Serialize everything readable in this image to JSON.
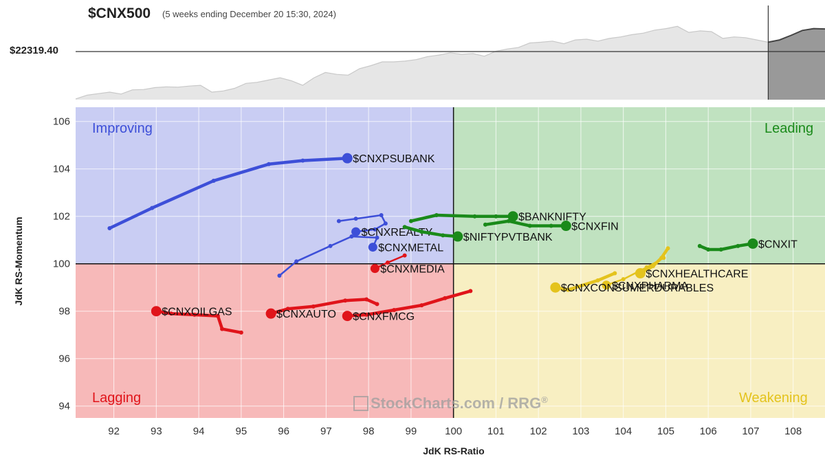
{
  "header": {
    "symbol": "$CNX500",
    "subtitle": "(5 weeks ending December 20 15:30, 2024)",
    "price_label": "$22319.40"
  },
  "axes": {
    "ylabel": "JdK RS-Momentum",
    "xlabel": "JdK RS-Ratio"
  },
  "quadrants": {
    "improving": "Improving",
    "leading": "Leading",
    "lagging": "Lagging",
    "weakening": "Weakening"
  },
  "watermark": {
    "main": "StockCharts.com",
    "sep": " / ",
    "rrg": "RRG",
    "mark": "®"
  },
  "colors": {
    "improving_bg": "#c9cdf3",
    "leading_bg": "#c0e2c0",
    "lagging_bg": "#f7b9b9",
    "weakening_bg": "#f8efc2",
    "blue": "#3d4fd8",
    "green": "#1a8a1a",
    "red": "#e0141a",
    "yellow": "#e4c31d"
  },
  "chart_data": [
    {
      "type": "area",
      "title": "$CNX500",
      "reference_value": "$22319.40",
      "values": [
        0.02,
        0.12,
        0.16,
        0.2,
        0.15,
        0.26,
        0.27,
        0.32,
        0.34,
        0.33,
        0.36,
        0.38,
        0.2,
        0.23,
        0.3,
        0.43,
        0.46,
        0.52,
        0.58,
        0.5,
        0.38,
        0.58,
        0.72,
        0.67,
        0.65,
        0.82,
        0.9,
        1.0,
        1.0,
        1.02,
        1.06,
        1.14,
        1.18,
        1.24,
        1.2,
        1.22,
        1.15,
        1.28,
        1.34,
        1.38,
        1.5,
        1.52,
        1.55,
        1.48,
        1.58,
        1.6,
        1.55,
        1.62,
        1.66,
        1.72,
        1.76,
        1.84,
        1.88,
        1.94,
        1.78,
        1.82,
        1.8,
        1.62,
        1.66,
        1.64,
        1.58,
        1.52,
        1.58,
        1.7,
        1.83,
        1.88,
        1.87
      ],
      "shaded_from_index": 61
    },
    {
      "type": "scatter",
      "subtype": "relative rotation graph",
      "xlabel": "JdK RS-Ratio",
      "ylabel": "JdK RS-Momentum",
      "xlim": [
        91.1,
        108.75
      ],
      "ylim": [
        93.5,
        106.6
      ],
      "xticks": [
        92,
        93,
        94,
        95,
        96,
        97,
        98,
        99,
        100,
        101,
        102,
        103,
        104,
        105,
        106,
        107,
        108
      ],
      "yticks": [
        94,
        96,
        98,
        100,
        102,
        104,
        106
      ],
      "center": [
        100,
        100
      ],
      "series": [
        {
          "name": "$CNXPSUBANK",
          "color": "blue",
          "head": "big",
          "points": [
            [
              91.9,
              101.5
            ],
            [
              92.9,
              102.35
            ],
            [
              94.35,
              103.5
            ],
            [
              95.65,
              104.2
            ],
            [
              96.45,
              104.35
            ],
            [
              97.5,
              104.45
            ]
          ]
        },
        {
          "name": "$CNXREALTY",
          "color": "blue",
          "head": "mid",
          "points": [
            [
              97.3,
              101.8
            ],
            [
              97.7,
              101.9
            ],
            [
              98.3,
              102.05
            ],
            [
              98.4,
              101.7
            ],
            [
              98.15,
              101.45
            ],
            [
              97.7,
              101.35
            ]
          ]
        },
        {
          "name": "$CNXMETAL",
          "color": "blue",
          "head": "mid",
          "points": [
            [
              95.9,
              99.5
            ],
            [
              96.3,
              100.1
            ],
            [
              97.1,
              100.75
            ],
            [
              97.6,
              101.15
            ],
            [
              98.2,
              101.1
            ],
            [
              98.1,
              100.7
            ]
          ]
        },
        {
          "name": "$BANKNIFTY",
          "color": "green",
          "head": "big",
          "points": [
            [
              99.0,
              101.8
            ],
            [
              99.6,
              102.05
            ],
            [
              100.5,
              102.0
            ],
            [
              101.0,
              102.0
            ],
            [
              101.4,
              102.0
            ]
          ]
        },
        {
          "name": "$CNXFIN",
          "color": "green",
          "head": "big",
          "points": [
            [
              100.75,
              101.65
            ],
            [
              101.3,
              101.8
            ],
            [
              101.8,
              101.6
            ],
            [
              102.3,
              101.6
            ],
            [
              102.65,
              101.6
            ]
          ]
        },
        {
          "name": "$NIFTYPVTBANK",
          "color": "green",
          "head": "big",
          "points": [
            [
              98.85,
              101.55
            ],
            [
              99.25,
              101.35
            ],
            [
              99.75,
              101.2
            ],
            [
              100.1,
              101.15
            ]
          ]
        },
        {
          "name": "$CNXIT",
          "color": "green",
          "head": "big",
          "points": [
            [
              105.8,
              100.75
            ],
            [
              106.0,
              100.6
            ],
            [
              106.3,
              100.6
            ],
            [
              106.7,
              100.75
            ],
            [
              107.05,
              100.85
            ]
          ]
        },
        {
          "name": "$CNXMEDIA",
          "color": "red",
          "head": "mid",
          "points": [
            [
              98.85,
              100.35
            ],
            [
              98.45,
              100.05
            ],
            [
              98.15,
              99.8
            ]
          ]
        },
        {
          "name": "$CNXOILGAS",
          "color": "red",
          "head": "big",
          "points": [
            [
              95.0,
              97.1
            ],
            [
              94.55,
              97.25
            ],
            [
              94.45,
              97.8
            ],
            [
              93.9,
              97.85
            ],
            [
              93.35,
              97.9
            ],
            [
              93.0,
              98.0
            ]
          ]
        },
        {
          "name": "$CNXAUTO",
          "color": "red",
          "head": "big",
          "points": [
            [
              98.2,
              98.3
            ],
            [
              97.95,
              98.5
            ],
            [
              97.45,
              98.45
            ],
            [
              96.7,
              98.2
            ],
            [
              96.1,
              98.1
            ],
            [
              95.7,
              97.9
            ]
          ]
        },
        {
          "name": "$CNXFMCG",
          "color": "red",
          "head": "big",
          "points": [
            [
              100.4,
              98.85
            ],
            [
              99.8,
              98.55
            ],
            [
              99.25,
              98.25
            ],
            [
              98.6,
              98.05
            ],
            [
              97.95,
              97.85
            ],
            [
              97.5,
              97.8
            ]
          ]
        },
        {
          "name": "$CNXHEALTHCARE",
          "color": "yellow",
          "head": "big",
          "points": [
            [
              105.05,
              100.65
            ],
            [
              104.9,
              100.25
            ],
            [
              104.7,
              99.9
            ],
            [
              104.4,
              99.6
            ]
          ]
        },
        {
          "name": "$CNXPHARMA",
          "color": "yellow",
          "head": "mid",
          "points": [
            [
              104.95,
              100.25
            ],
            [
              104.55,
              99.85
            ],
            [
              104.0,
              99.35
            ],
            [
              103.6,
              99.1
            ]
          ]
        },
        {
          "name": "$CNXCONSUMERDURABLES",
          "color": "yellow",
          "head": "big",
          "points": [
            [
              103.8,
              99.6
            ],
            [
              103.4,
              99.3
            ],
            [
              102.7,
              98.9
            ],
            [
              102.4,
              99.0
            ]
          ]
        }
      ]
    }
  ]
}
